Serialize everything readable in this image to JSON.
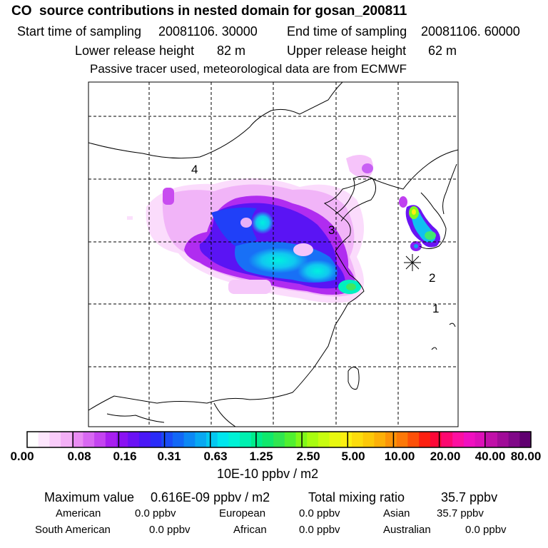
{
  "header": {
    "title": "CO  source contributions in nested domain for gosan_200811",
    "start_label": "Start time of sampling",
    "start_value": "20081106. 30000",
    "end_label": "End time of sampling",
    "end_value": "20081106. 60000",
    "lower_label": "Lower release height",
    "lower_value": "82 m",
    "upper_label": "Upper release height",
    "upper_value": "62 m",
    "note": "Passive tracer used, meteorological data are from ECMWF"
  },
  "map": {
    "region_labels": [
      "1",
      "2",
      "3",
      "4"
    ],
    "receptor_symbol": "✳"
  },
  "colorbar": {
    "tick_labels": [
      "0.00",
      "0.08",
      "0.16",
      "0.31",
      "0.63",
      "1.25",
      "2.50",
      "5.00",
      "10.00",
      "20.00",
      "40.00",
      "80.00"
    ],
    "unit_label": "10E-10 ppbv / m2",
    "colors": [
      "#ffffff",
      "#fde6fd",
      "#f9ccfa",
      "#f3b0f6",
      "#e98cf3",
      "#d868f2",
      "#c444f0",
      "#a81ff0",
      "#8a12f2",
      "#6a12f4",
      "#4a18f6",
      "#2a2cf8",
      "#1a4cf8",
      "#1268f6",
      "#0c88f4",
      "#08a8f2",
      "#04c8f0",
      "#00e6ee",
      "#00f2d6",
      "#00f0b0",
      "#00ec8a",
      "#10e86c",
      "#30e650",
      "#50f030",
      "#80f818",
      "#a8fc10",
      "#c8fc10",
      "#e8f810",
      "#fcf010",
      "#fcdc0c",
      "#fcc808",
      "#fcb008",
      "#fc9408",
      "#fc7808",
      "#fc5008",
      "#fc2010",
      "#fc0838",
      "#fc0870",
      "#fc10a0",
      "#f010c0",
      "#dc10b8",
      "#c010a8",
      "#a00c98",
      "#800888",
      "#600070"
    ]
  },
  "stats": {
    "max_label": "Maximum value",
    "max_value": "0.616E-09 ppbv / m2",
    "total_label": "Total mixing ratio",
    "total_value": "35.7 ppbv",
    "regions": [
      {
        "name": "American",
        "value": "0.0 ppbv"
      },
      {
        "name": "European",
        "value": "0.0 ppbv"
      },
      {
        "name": "Asian",
        "value": "35.7 ppbv"
      },
      {
        "name": "South American",
        "value": "0.0 ppbv"
      },
      {
        "name": "African",
        "value": "0.0 ppbv"
      },
      {
        "name": "Australian",
        "value": "0.0 ppbv"
      }
    ]
  }
}
